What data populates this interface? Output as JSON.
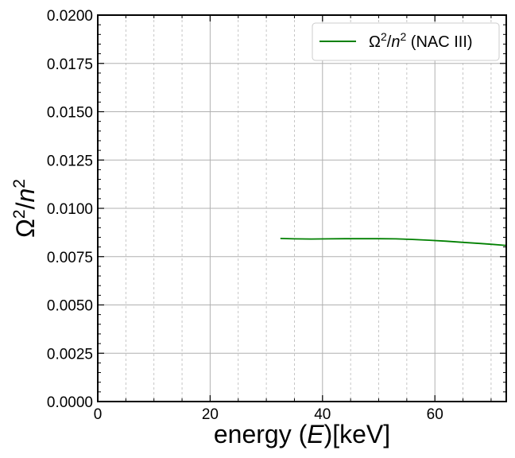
{
  "chart_data": {
    "type": "line",
    "title": "",
    "xlabel": "energy (E)[keV]",
    "xlabel_parts": {
      "pre": "energy (",
      "italic": "E",
      "post": ")[keV]"
    },
    "ylabel": "Ω²/n²",
    "xlim": [
      0,
      72.7
    ],
    "ylim": [
      0.0,
      0.02
    ],
    "x_major_ticks": [
      0,
      20,
      40,
      60
    ],
    "x_tick_labels": [
      "0",
      "20",
      "40",
      "60"
    ],
    "x_minor_ticks": [
      5,
      10,
      15,
      25,
      30,
      35,
      45,
      50,
      55,
      65,
      70
    ],
    "y_major_ticks": [
      0.0,
      0.0025,
      0.005,
      0.0075,
      0.01,
      0.0125,
      0.015,
      0.0175,
      0.02
    ],
    "y_tick_labels": [
      "0.0000",
      "0.0025",
      "0.0050",
      "0.0075",
      "0.0100",
      "0.0125",
      "0.0150",
      "0.0175",
      "0.0200"
    ],
    "grid": true,
    "legend_position": "top-right",
    "series": [
      {
        "name": "Ω²/n² (NAC III)",
        "color": "#008000",
        "x": [
          32.5,
          35,
          38,
          41,
          44,
          47,
          50,
          53,
          56,
          59,
          62,
          65,
          68,
          70,
          72.7
        ],
        "y": [
          0.00844,
          0.00842,
          0.00841,
          0.00842,
          0.00843,
          0.00843,
          0.00843,
          0.00842,
          0.00839,
          0.00835,
          0.0083,
          0.00824,
          0.00818,
          0.00814,
          0.00808
        ]
      }
    ]
  }
}
